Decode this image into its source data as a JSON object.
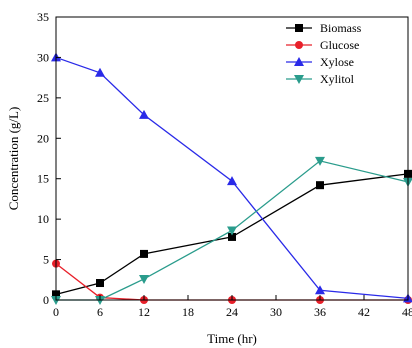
{
  "chart_data": {
    "type": "line",
    "xlabel": "Time (hr)",
    "ylabel": "Concentration (g/L)",
    "xlim": [
      0,
      48
    ],
    "ylim": [
      0,
      35
    ],
    "xticks": [
      "0",
      "6",
      "12",
      "18",
      "24",
      "30",
      "36",
      "42",
      "48"
    ],
    "yticks": [
      "0",
      "5",
      "10",
      "15",
      "20",
      "25",
      "30",
      "35"
    ],
    "legend_position": "top-right",
    "grid": false,
    "series": [
      {
        "name": "Biomass",
        "color": "#000000",
        "marker": "square",
        "x": [
          0,
          6,
          12,
          24,
          36,
          48
        ],
        "y": [
          0.7,
          2.1,
          5.7,
          7.8,
          14.2,
          15.6
        ]
      },
      {
        "name": "Glucose",
        "color": "#e8202a",
        "marker": "circle",
        "x": [
          0,
          6,
          12,
          24,
          36,
          48
        ],
        "y": [
          4.5,
          0.3,
          0,
          0,
          0,
          0
        ]
      },
      {
        "name": "Xylose",
        "color": "#2a2ae8",
        "marker": "triangle-up",
        "x": [
          0,
          6,
          12,
          24,
          36,
          48
        ],
        "y": [
          30,
          28.1,
          22.9,
          14.7,
          1.2,
          0.2
        ]
      },
      {
        "name": "Xylitol",
        "color": "#2a9c8c",
        "marker": "triangle-down",
        "x": [
          0,
          6,
          12,
          24,
          36,
          48
        ],
        "y": [
          0,
          0,
          2.6,
          8.6,
          17.2,
          14.6
        ]
      }
    ]
  }
}
